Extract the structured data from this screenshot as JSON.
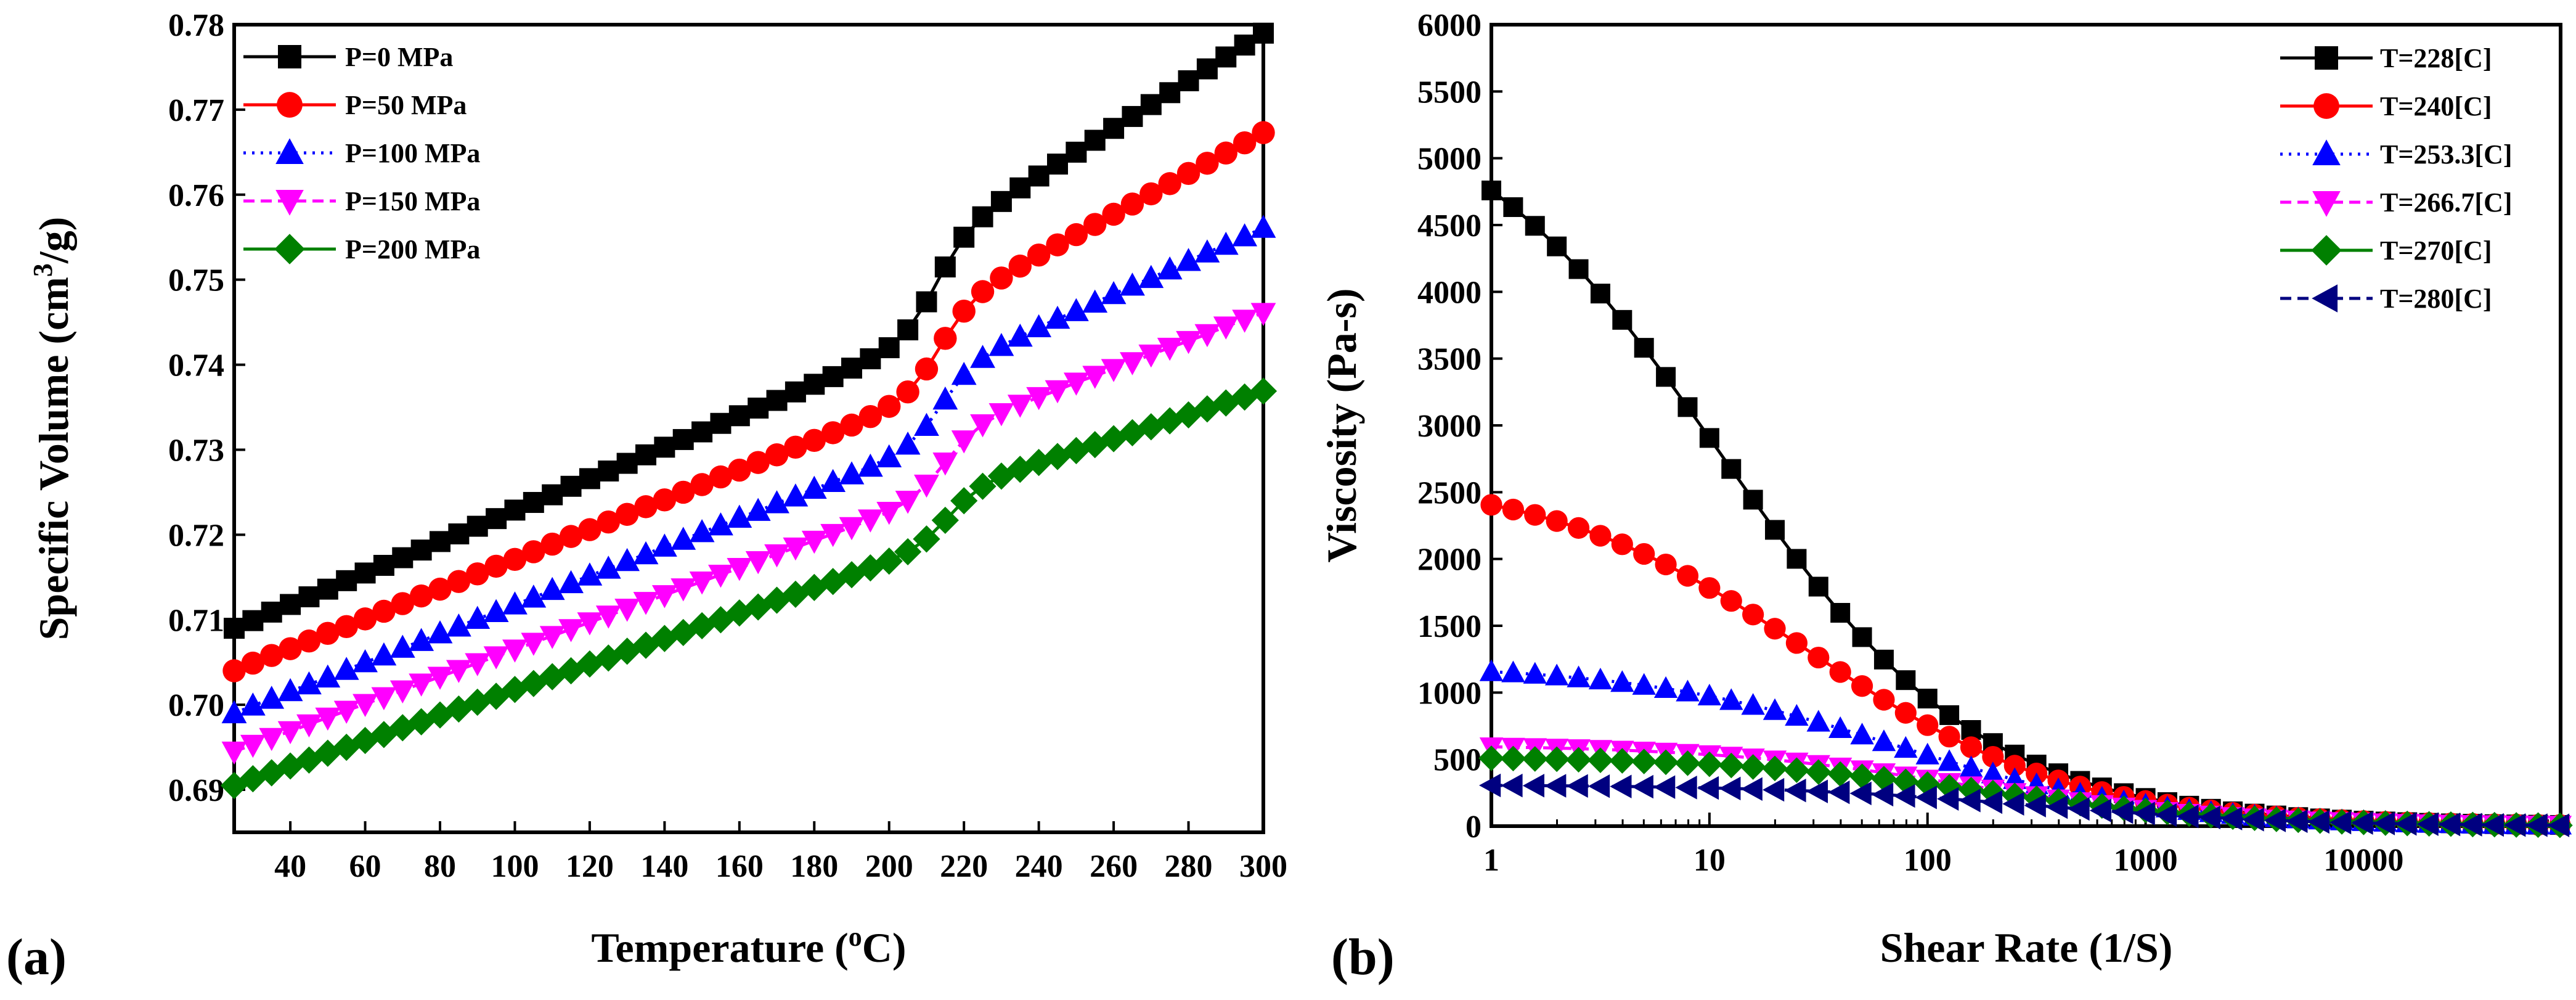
{
  "chart_data": [
    {
      "type": "scatter",
      "panel_label": "(a)",
      "title": "",
      "xlabel": "Temperature (oC)",
      "xlabel_parts": {
        "main": "Temperature (",
        "sup": "o",
        "rest": "C)"
      },
      "ylabel": "Specific Volume (cm3/g)",
      "ylabel_parts": {
        "main": "Specific Volume (cm",
        "sup": "3",
        "rest": "/g)"
      },
      "xlim": [
        25,
        300
      ],
      "ylim": [
        0.685,
        0.78
      ],
      "xscale": "linear",
      "yscale": "linear",
      "x_ticks": [
        40,
        60,
        80,
        100,
        120,
        140,
        160,
        180,
        200,
        220,
        240,
        260,
        280,
        300
      ],
      "y_ticks": [
        0.69,
        0.7,
        0.71,
        0.72,
        0.73,
        0.74,
        0.75,
        0.76,
        0.77,
        0.78
      ],
      "y_tick_labels": [
        "0.69",
        "0.70",
        "0.71",
        "0.72",
        "0.73",
        "0.74",
        "0.75",
        "0.76",
        "0.77",
        "0.78"
      ],
      "grid": false,
      "legend_position": "top-left",
      "x": [
        25,
        30,
        35,
        40,
        45,
        50,
        55,
        60,
        65,
        70,
        75,
        80,
        85,
        90,
        95,
        100,
        105,
        110,
        115,
        120,
        125,
        130,
        135,
        140,
        145,
        150,
        155,
        160,
        165,
        170,
        175,
        180,
        185,
        190,
        195,
        200,
        205,
        210,
        215,
        220,
        225,
        230,
        235,
        240,
        245,
        250,
        255,
        260,
        265,
        270,
        275,
        280,
        285,
        290,
        295,
        300
      ],
      "series": [
        {
          "name": "P=0 MPa",
          "color": "#000000",
          "marker": "square",
          "line": "solid",
          "transition": {
            "v0": 0.709,
            "s1": 0.000185,
            "tg": 212,
            "jump": 0.0108,
            "width": 4.5,
            "s2": 0.00028
          }
        },
        {
          "name": "P=50 MPa",
          "color": "#ff0000",
          "marker": "circle",
          "line": "solid",
          "transition": {
            "v0": 0.704,
            "s1": 0.000175,
            "tg": 213,
            "jump": 0.0095,
            "width": 4.5,
            "s2": 0.00024
          }
        },
        {
          "name": "P=100 MPa",
          "color": "#0000ff",
          "marker": "triangle-up",
          "line": "dotted",
          "transition": {
            "v0": 0.699,
            "s1": 0.00017,
            "tg": 214,
            "jump": 0.0082,
            "width": 4.5,
            "s2": 0.000195
          }
        },
        {
          "name": "P=150 MPa",
          "color": "#ff00ff",
          "marker": "triangle-down",
          "line": "dashed",
          "transition": {
            "v0": 0.6945,
            "s1": 0.00016,
            "tg": 215,
            "jump": 0.0072,
            "width": 4.5,
            "s2": 0.000165
          }
        },
        {
          "name": "P=200 MPa",
          "color": "#008000",
          "marker": "diamond",
          "line": "solid",
          "transition": {
            "v0": 0.6905,
            "s1": 0.00015,
            "tg": 216,
            "jump": 0.006,
            "width": 4.5,
            "s2": 0.00014
          }
        }
      ]
    },
    {
      "type": "scatter",
      "panel_label": "(b)",
      "title": "",
      "xlabel": "Shear Rate (1/S)",
      "ylabel": "Viscosity (Pa-s)",
      "xlim": [
        1,
        80000
      ],
      "ylim": [
        0,
        6000
      ],
      "xscale": "log",
      "yscale": "linear",
      "x_ticks": [
        1,
        10,
        100,
        1000,
        10000
      ],
      "x_tick_labels": [
        "1",
        "10",
        "100",
        "1000",
        "10000"
      ],
      "y_ticks": [
        0,
        500,
        1000,
        1500,
        2000,
        2500,
        3000,
        3500,
        4000,
        4500,
        5000,
        5500,
        6000
      ],
      "grid": false,
      "legend_position": "top-right",
      "x_start": 1,
      "x_points_per_decade": 10,
      "x_count": 50,
      "series": [
        {
          "name": "T=228[C]",
          "color": "#000000",
          "marker": "square",
          "line": "solid",
          "cross_model": {
            "eta0": 5600,
            "lambda": 0.09,
            "n": 0.28
          }
        },
        {
          "name": "T=240[C]",
          "color": "#ff0000",
          "marker": "circle",
          "line": "solid",
          "cross_model": {
            "eta0": 2620,
            "lambda": 0.035,
            "n": 0.28
          }
        },
        {
          "name": "T=253.3[C]",
          "color": "#0000ff",
          "marker": "triangle-up",
          "line": "dotted",
          "cross_model": {
            "eta0": 1210,
            "lambda": 0.014,
            "n": 0.28
          }
        },
        {
          "name": "T=266.7[C]",
          "color": "#ff00ff",
          "marker": "triangle-down",
          "line": "dashed",
          "cross_model": {
            "eta0": 610,
            "lambda": 0.0065,
            "n": 0.28
          }
        },
        {
          "name": "T=270[C]",
          "color": "#008000",
          "marker": "diamond",
          "line": "solid",
          "cross_model": {
            "eta0": 520,
            "lambda": 0.0055,
            "n": 0.28
          }
        },
        {
          "name": "T=280[C]",
          "color": "#000080",
          "marker": "triangle-left",
          "line": "dashed",
          "cross_model": {
            "eta0": 310,
            "lambda": 0.0032,
            "n": 0.28
          }
        }
      ]
    }
  ]
}
